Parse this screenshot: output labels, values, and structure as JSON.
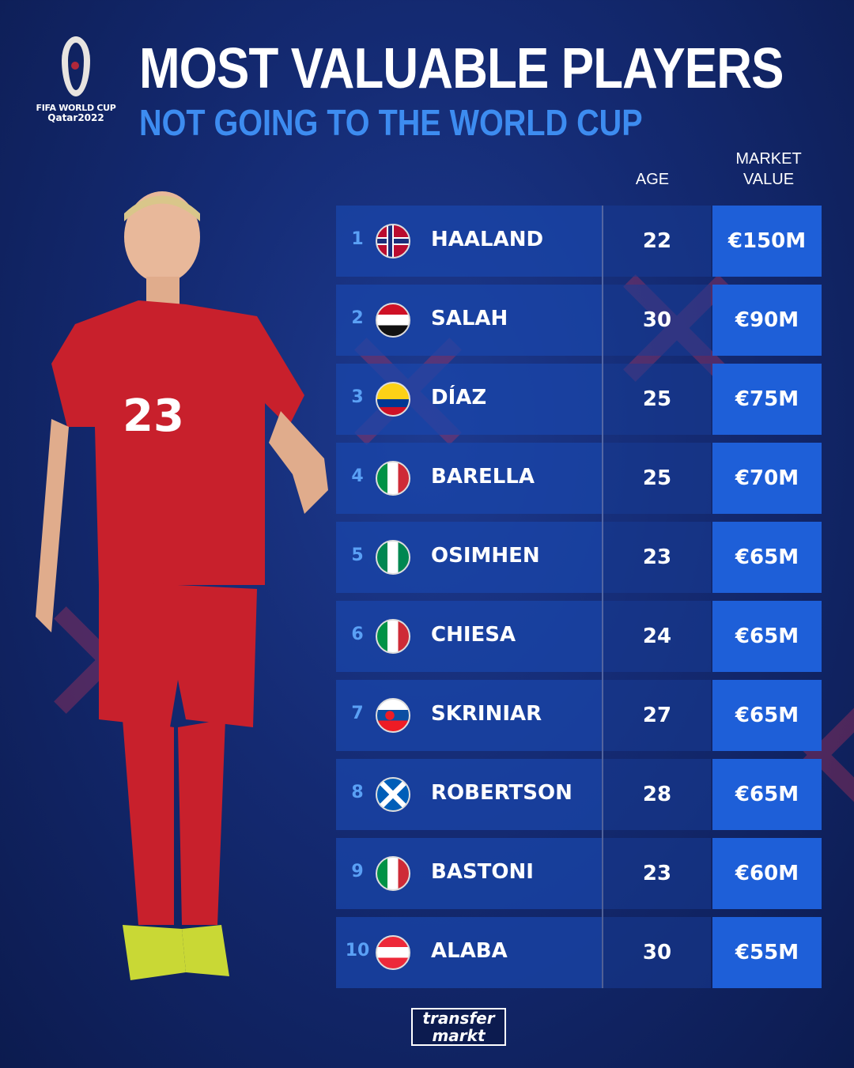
{
  "logo": {
    "line1": "FIFA WORLD CUP",
    "line2": "Qatar2022"
  },
  "title": "MOST VALUABLE PLAYERS",
  "subtitle": "NOT GOING TO THE WORLD CUP",
  "headers": {
    "age": "AGE",
    "market_value": "MARKET VALUE"
  },
  "players": [
    {
      "rank": "1",
      "flag": "norway",
      "name": "HAALAND",
      "age": "22",
      "value": "€150M"
    },
    {
      "rank": "2",
      "flag": "egypt",
      "name": "SALAH",
      "age": "30",
      "value": "€90M"
    },
    {
      "rank": "3",
      "flag": "colombia",
      "name": "DÍAZ",
      "age": "25",
      "value": "€75M"
    },
    {
      "rank": "4",
      "flag": "italy",
      "name": "BARELLA",
      "age": "25",
      "value": "€70M"
    },
    {
      "rank": "5",
      "flag": "nigeria",
      "name": "OSIMHEN",
      "age": "23",
      "value": "€65M"
    },
    {
      "rank": "6",
      "flag": "italy",
      "name": "CHIESA",
      "age": "24",
      "value": "€65M"
    },
    {
      "rank": "7",
      "flag": "slovakia",
      "name": "SKRINIAR",
      "age": "27",
      "value": "€65M"
    },
    {
      "rank": "8",
      "flag": "scotland",
      "name": "ROBERTSON",
      "age": "28",
      "value": "€65M"
    },
    {
      "rank": "9",
      "flag": "italy",
      "name": "BASTONI",
      "age": "23",
      "value": "€60M"
    },
    {
      "rank": "10",
      "flag": "austria",
      "name": "ALABA",
      "age": "30",
      "value": "€55M"
    }
  ],
  "player_photo": {
    "shirt_number": "23"
  },
  "brand": {
    "line1": "transfer",
    "line2": "markt"
  },
  "colors": {
    "accent": "#3d8cf0",
    "value_bg": "#1e5fd8",
    "shirt": "#c8202c"
  }
}
